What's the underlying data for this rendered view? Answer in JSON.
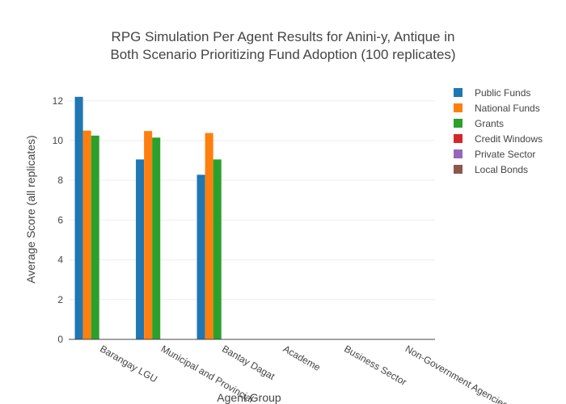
{
  "chart_data": {
    "type": "bar",
    "title_lines": [
      "RPG Simulation Per Agent Results for Anini-y, Antique in",
      "Both Scenario Prioritizing Fund Adoption (100 replicates)"
    ],
    "xlabel": "Agent Group",
    "ylabel": "Average Score (all replicates)",
    "ylim": [
      0,
      12.6
    ],
    "yticks": [
      "0",
      "2",
      "4",
      "6",
      "8",
      "10",
      "12"
    ],
    "categories": [
      "Barangay LGU",
      "Municipal and Provincial",
      "Bantay Dagat",
      "Academe",
      "Business Sector",
      "Non-Government Agencies"
    ],
    "series": [
      {
        "name": "Public Funds",
        "color": "#1f77b4",
        "values": [
          12.2,
          9.05,
          8.28,
          0,
          0,
          0
        ]
      },
      {
        "name": "National Funds",
        "color": "#ff7f0e",
        "values": [
          10.5,
          10.48,
          10.38,
          0,
          0,
          0
        ]
      },
      {
        "name": "Grants",
        "color": "#2ca02c",
        "values": [
          10.25,
          10.15,
          9.05,
          0,
          0,
          0
        ]
      },
      {
        "name": "Credit Windows",
        "color": "#d62728",
        "values": [
          0,
          0,
          0,
          0,
          0,
          0
        ]
      },
      {
        "name": "Private Sector",
        "color": "#9467bd",
        "values": [
          0,
          0,
          0,
          0,
          0,
          0
        ]
      },
      {
        "name": "Local Bonds",
        "color": "#8c564b",
        "values": [
          0,
          0,
          0,
          0,
          0,
          0
        ]
      }
    ],
    "grid": true,
    "legend_position": "top-right"
  }
}
